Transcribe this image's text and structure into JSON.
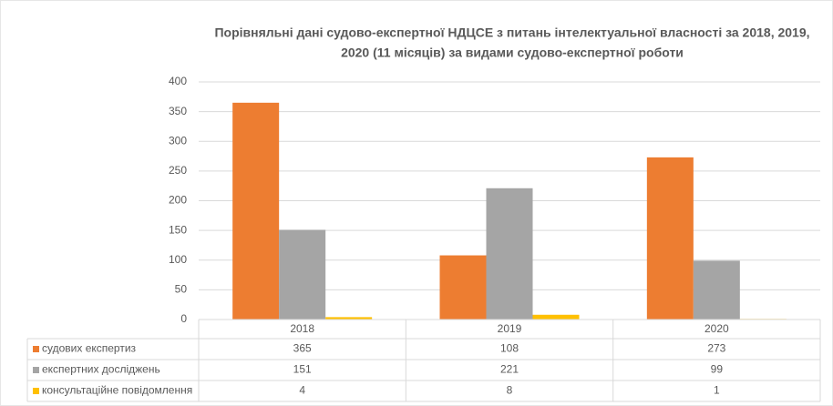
{
  "chart_data": {
    "type": "bar",
    "title": [
      "Порівняльні дані судово-експертної НДЦСЕ з питань інтелектуальної власності за 2018, 2019,",
      "2020 (11 місяців) за видами судово-експертної роботи"
    ],
    "categories": [
      "2018",
      "2019",
      "2020"
    ],
    "series": [
      {
        "name": "судових експертиз",
        "color": "#ed7d31",
        "values": [
          365,
          108,
          273
        ]
      },
      {
        "name": "експертних досліджень",
        "color": "#a5a5a5",
        "values": [
          151,
          221,
          99
        ]
      },
      {
        "name": "консультаційне повідомлення",
        "color": "#ffc000",
        "values": [
          4,
          8,
          1
        ]
      }
    ],
    "ylim": [
      0,
      400
    ],
    "yticks": [
      0,
      50,
      100,
      150,
      200,
      250,
      300,
      350,
      400
    ],
    "grid": true
  }
}
